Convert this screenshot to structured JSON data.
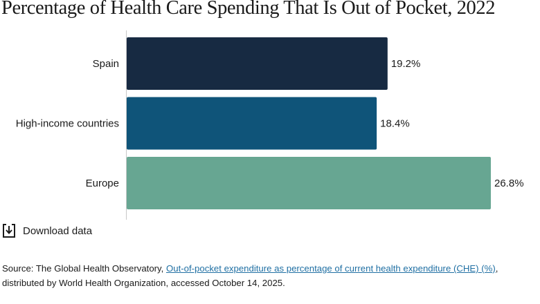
{
  "title": "Percentage of Health Care Spending That Is Out of Pocket, 2022",
  "chart_data": {
    "type": "bar",
    "orientation": "horizontal",
    "categories": [
      "Spain",
      "High-income countries",
      "Europe"
    ],
    "values": [
      19.2,
      18.4,
      26.8
    ],
    "value_labels": [
      "19.2%",
      "18.4%",
      "26.8%"
    ],
    "colors": [
      "#172a42",
      "#0f5479",
      "#67a692"
    ],
    "xlim": [
      0,
      26.8
    ],
    "grid": false,
    "xlabel": "",
    "ylabel": ""
  },
  "download": {
    "label": "Download data",
    "icon": "download-icon"
  },
  "source": {
    "prefix": "Source: The Global Health Observatory, ",
    "link_text": "Out-of-pocket expenditure as percentage of current health expenditure (CHE) (%)",
    "suffix": ", distributed by World Health Organization, accessed October 14, 2025."
  }
}
